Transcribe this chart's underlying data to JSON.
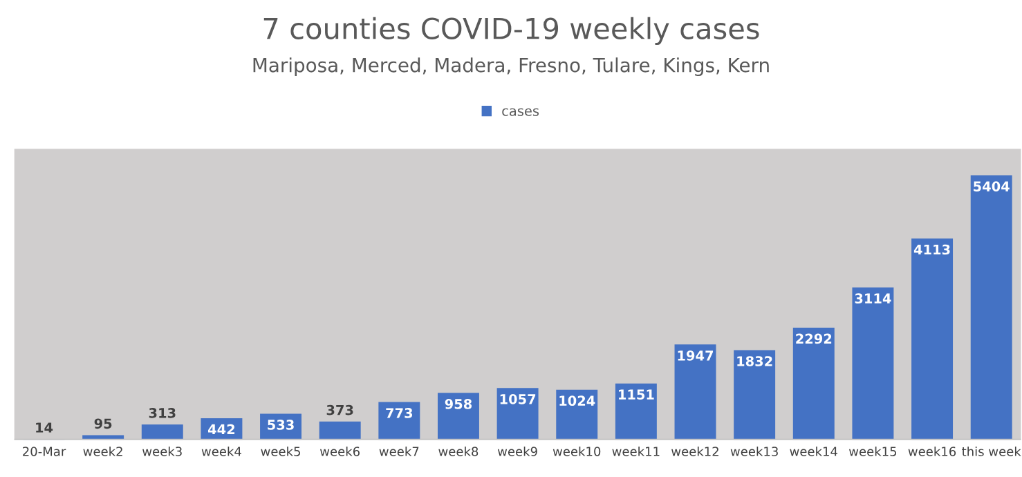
{
  "chart_data": {
    "type": "bar",
    "title": "7 counties COVID-19 weekly cases",
    "subtitle": "Mariposa, Merced, Madera, Fresno, Tulare, Kings, Kern",
    "categories": [
      "20-Mar",
      "week2",
      "week3",
      "week4",
      "week5",
      "week6",
      "week7",
      "week8",
      "week9",
      "week10",
      "week11",
      "week12",
      "week13",
      "week14",
      "week15",
      "week16",
      "this week"
    ],
    "series": [
      {
        "name": "cases",
        "color": "#4472c4",
        "values": [
          14,
          95,
          313,
          442,
          533,
          373,
          773,
          958,
          1057,
          1024,
          1151,
          1947,
          1832,
          2292,
          3114,
          4113,
          5404
        ]
      }
    ],
    "data_labels": true,
    "legend": "top",
    "grid": false
  }
}
